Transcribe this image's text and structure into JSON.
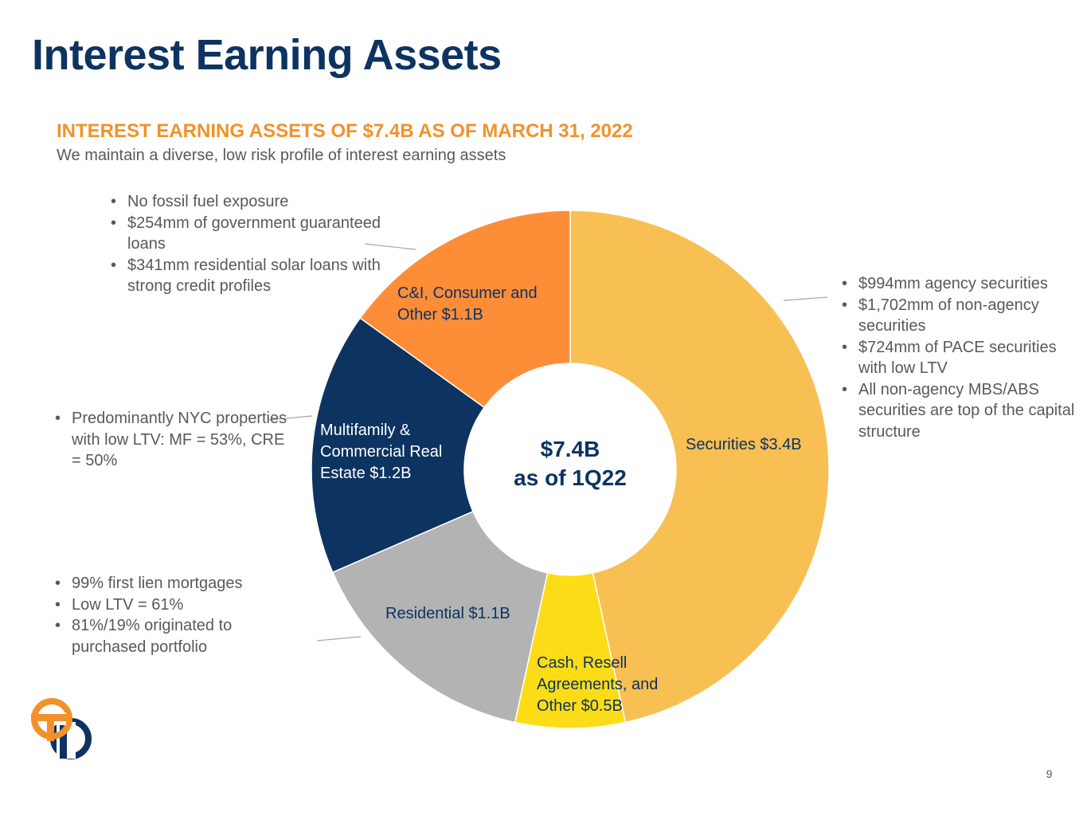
{
  "page": {
    "title": "Interest Earning Assets",
    "subtitle": "INTEREST EARNING ASSETS OF $7.4B AS OF MARCH 31, 2022",
    "tagline": "We maintain a diverse, low risk profile of interest earning assets",
    "page_number": "9",
    "center_label_line1": "$7.4B",
    "center_label_line2": "as of 1Q22",
    "accent_color": "#f29129",
    "brand_color": "#0d3361",
    "logo_icon": "company-logo-icon"
  },
  "chart_data": {
    "type": "pie",
    "donut": true,
    "total_label": "$7.4B as of 1Q22",
    "slices": [
      {
        "name": "Securities",
        "label_line1": "Securities $3.4B",
        "label_line2": "",
        "label_line3": "",
        "value": 3.4,
        "color": "#f8bf53"
      },
      {
        "name": "Cash, Resell Agreements, and Other",
        "label_line1": "Cash, Resell",
        "label_line2": "Agreements, and",
        "label_line3": "Other $0.5B",
        "value": 0.5,
        "color": "#fbdc17"
      },
      {
        "name": "Residential",
        "label_line1": "Residential $1.1B",
        "label_line2": "",
        "label_line3": "",
        "value": 1.1,
        "color": "#b3b3b3"
      },
      {
        "name": "Multifamily & Commercial Real Estate",
        "label_line1": "Multifamily &",
        "label_line2": "Commercial Real",
        "label_line3": "Estate $1.2B",
        "value": 1.2,
        "color": "#0d3361"
      },
      {
        "name": "C&I, Consumer and Other",
        "label_line1": "C&I, Consumer and",
        "label_line2": "Other $1.1B",
        "label_line3": "",
        "value": 1.1,
        "color": "#fe8d38"
      }
    ],
    "legend": "none"
  },
  "annotations": {
    "cni": [
      "No fossil fuel exposure",
      "$254mm of government guaranteed loans",
      "$341mm residential solar loans with strong credit profiles"
    ],
    "securities": [
      "$994mm agency securities",
      "$1,702mm of non-agency securities",
      "$724mm of PACE securities with low LTV",
      "All non-agency MBS/ABS securities are top of the capital structure"
    ],
    "multifamily": [
      "Predominantly NYC properties with low LTV: MF = 53%, CRE = 50%"
    ],
    "residential": [
      "99% first lien mortgages",
      "Low LTV = 61%",
      "81%/19% originated to purchased portfolio"
    ]
  }
}
